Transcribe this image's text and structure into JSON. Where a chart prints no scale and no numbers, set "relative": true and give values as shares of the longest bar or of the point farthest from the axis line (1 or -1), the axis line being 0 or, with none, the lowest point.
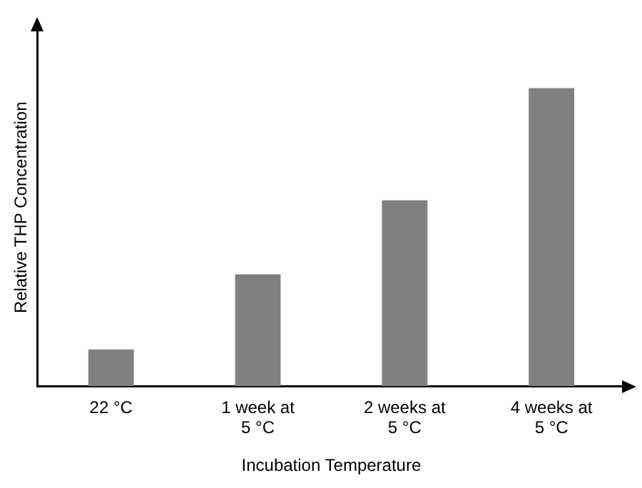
{
  "chart_data": {
    "type": "bar",
    "relative": true,
    "xlabel": "Incubation Temperature",
    "ylabel": "Relative THP Concentration",
    "categories": [
      "22 °C",
      "1 week at\n5 °C",
      "2 weeks at\n5 °C",
      "4 weeks at\n5 °C"
    ],
    "values": [
      0.124,
      0.376,
      0.624,
      1
    ],
    "color": "#808080",
    "grid": false,
    "legend": false
  }
}
